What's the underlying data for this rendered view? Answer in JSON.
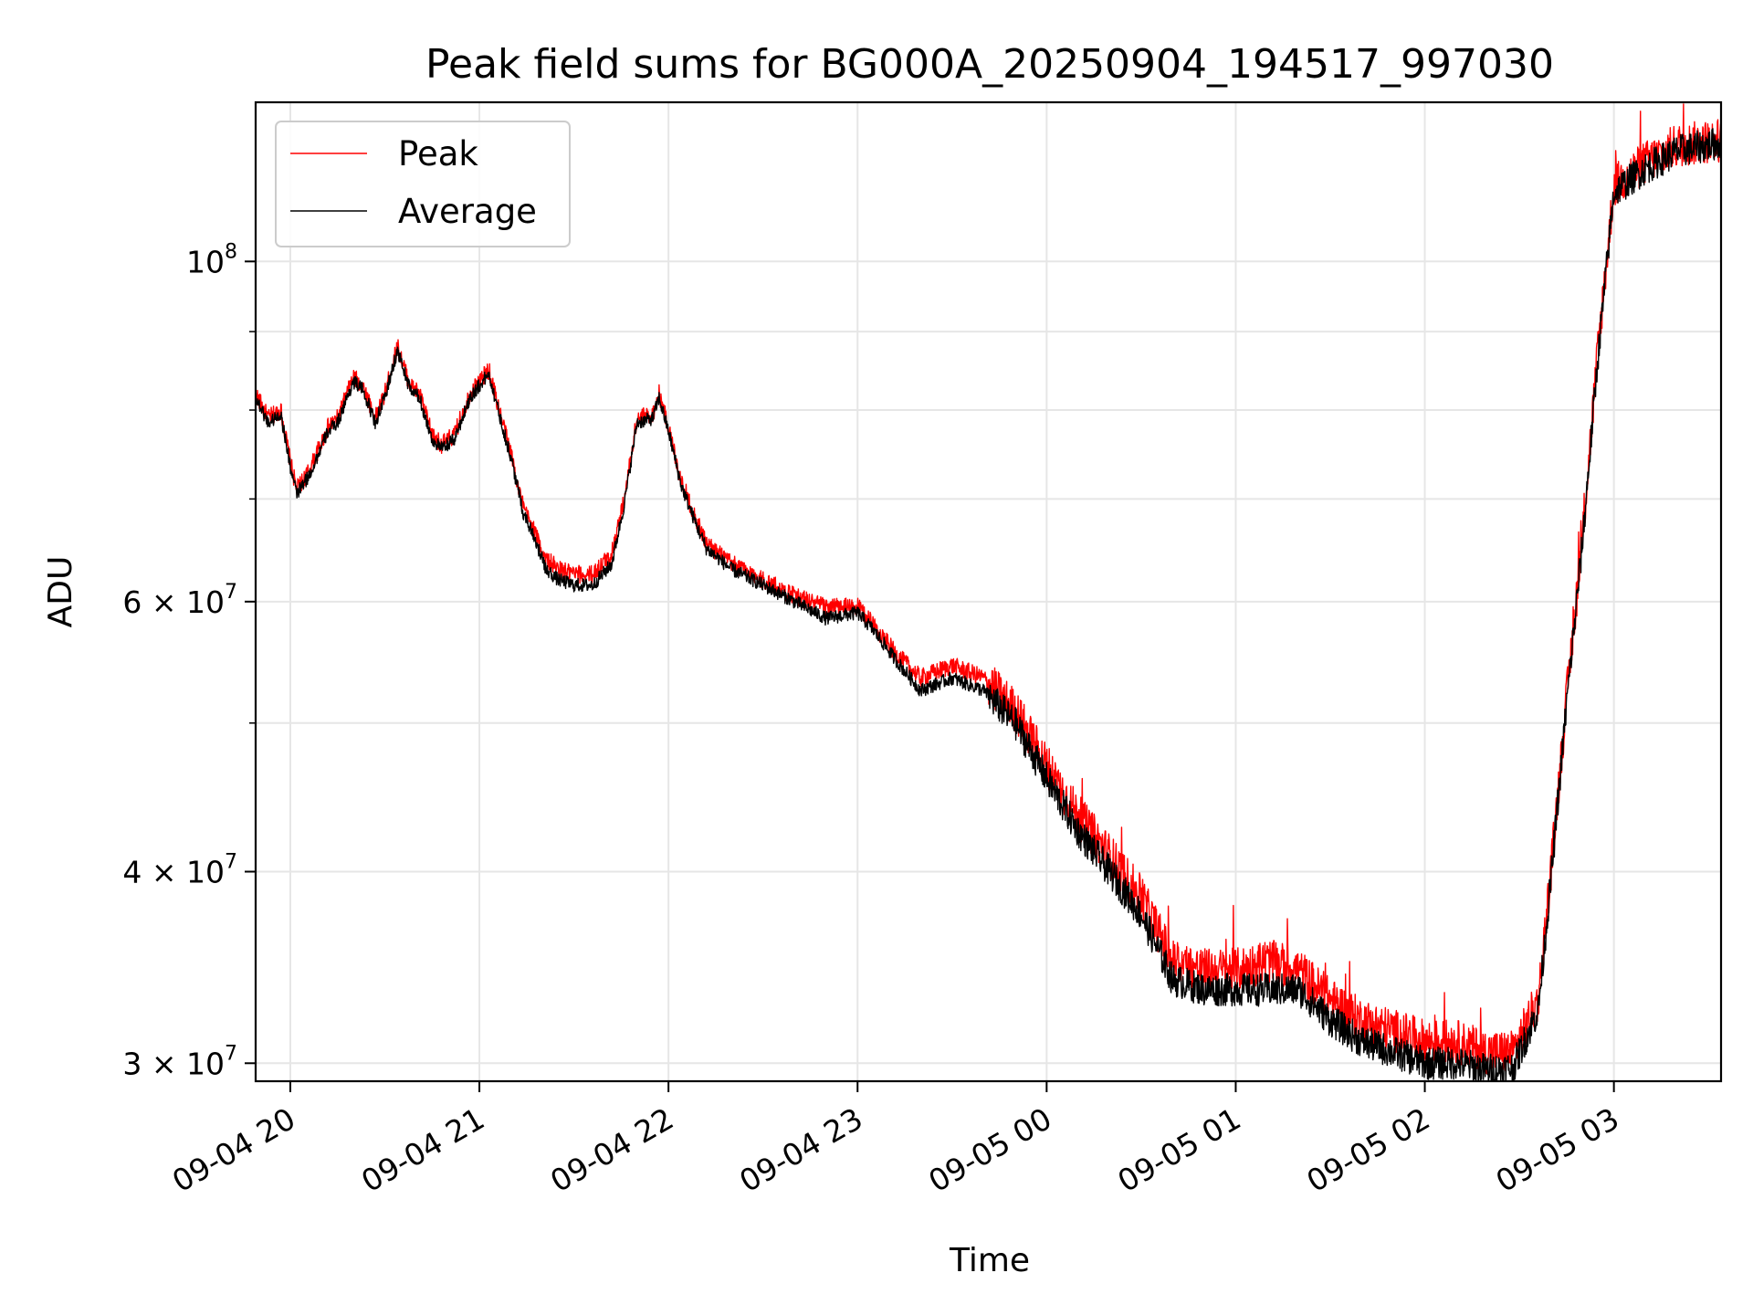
{
  "chart_data": {
    "type": "line",
    "title": "Peak field sums for BG000A_20250904_194517_997030",
    "xlabel": "Time",
    "ylabel": "ADU",
    "y_scale": "log",
    "ylim": [
      29200000,
      127000000
    ],
    "xlim": [
      "2025-09-04 19:49",
      "2025-09-05 03:34"
    ],
    "grid": true,
    "legend_position": "upper-left",
    "x_ticks": [
      {
        "label": "09-04 20",
        "time": "2025-09-04 20:00"
      },
      {
        "label": "09-04 21",
        "time": "2025-09-04 21:00"
      },
      {
        "label": "09-04 22",
        "time": "2025-09-04 22:00"
      },
      {
        "label": "09-04 23",
        "time": "2025-09-04 23:00"
      },
      {
        "label": "09-05 00",
        "time": "2025-09-05 00:00"
      },
      {
        "label": "09-05 01",
        "time": "2025-09-05 01:00"
      },
      {
        "label": "09-05 02",
        "time": "2025-09-05 02:00"
      },
      {
        "label": "09-05 03",
        "time": "2025-09-05 03:00"
      }
    ],
    "y_major_ticks": [
      {
        "value": 30000000,
        "mantissa": "3",
        "base": "10",
        "exp": "7"
      },
      {
        "value": 40000000,
        "mantissa": "4",
        "base": "10",
        "exp": "7"
      },
      {
        "value": 60000000,
        "mantissa": "6",
        "base": "10",
        "exp": "7"
      },
      {
        "value": 100000000,
        "mantissa": "",
        "base": "10",
        "exp": "8"
      }
    ],
    "y_minor_gridlines": [
      50000000,
      70000000,
      80000000,
      90000000
    ],
    "series": [
      {
        "name": "Peak",
        "color": "#ff0000",
        "points": [
          [
            "2025-09-04 19:49",
            82000000
          ],
          [
            "2025-09-04 19:53",
            79000000
          ],
          [
            "2025-09-04 19:57",
            80000000
          ],
          [
            "2025-09-04 20:00",
            74000000
          ],
          [
            "2025-09-04 20:02",
            71000000
          ],
          [
            "2025-09-04 20:06",
            73000000
          ],
          [
            "2025-09-04 20:12",
            78000000
          ],
          [
            "2025-09-04 20:15",
            79000000
          ],
          [
            "2025-09-04 20:20",
            84000000
          ],
          [
            "2025-09-04 20:23",
            83000000
          ],
          [
            "2025-09-04 20:27",
            79000000
          ],
          [
            "2025-09-04 20:30",
            82000000
          ],
          [
            "2025-09-04 20:34",
            88000000
          ],
          [
            "2025-09-04 20:38",
            83000000
          ],
          [
            "2025-09-04 20:41",
            82000000
          ],
          [
            "2025-09-04 20:45",
            77000000
          ],
          [
            "2025-09-04 20:48",
            76000000
          ],
          [
            "2025-09-04 20:52",
            77000000
          ],
          [
            "2025-09-04 20:57",
            82000000
          ],
          [
            "2025-09-04 21:03",
            85000000
          ],
          [
            "2025-09-04 21:07",
            79000000
          ],
          [
            "2025-09-04 21:10",
            75000000
          ],
          [
            "2025-09-04 21:14",
            69000000
          ],
          [
            "2025-09-04 21:17",
            67000000
          ],
          [
            "2025-09-04 21:21",
            64000000
          ],
          [
            "2025-09-04 21:25",
            63000000
          ],
          [
            "2025-09-04 21:30",
            62500000
          ],
          [
            "2025-09-04 21:36",
            62500000
          ],
          [
            "2025-09-04 21:42",
            64500000
          ],
          [
            "2025-09-04 21:46",
            70000000
          ],
          [
            "2025-09-04 21:50",
            79000000
          ],
          [
            "2025-09-04 21:55",
            79500000
          ],
          [
            "2025-09-04 21:57",
            82000000
          ],
          [
            "2025-09-04 22:00",
            78000000
          ],
          [
            "2025-09-04 22:04",
            72000000
          ],
          [
            "2025-09-04 22:08",
            68500000
          ],
          [
            "2025-09-04 22:12",
            65500000
          ],
          [
            "2025-09-04 22:20",
            63500000
          ],
          [
            "2025-09-04 22:30",
            62000000
          ],
          [
            "2025-09-04 22:40",
            60500000
          ],
          [
            "2025-09-04 22:50",
            59500000
          ],
          [
            "2025-09-04 23:00",
            59500000
          ],
          [
            "2025-09-04 23:05",
            58000000
          ],
          [
            "2025-09-04 23:12",
            55500000
          ],
          [
            "2025-09-04 23:20",
            53500000
          ],
          [
            "2025-09-04 23:30",
            54500000
          ],
          [
            "2025-09-04 23:40",
            53500000
          ],
          [
            "2025-09-04 23:50",
            51000000
          ],
          [
            "2025-09-05 00:00",
            47000000
          ],
          [
            "2025-09-05 00:10",
            43500000
          ],
          [
            "2025-09-05 00:20",
            41000000
          ],
          [
            "2025-09-05 00:30",
            38500000
          ],
          [
            "2025-09-05 00:40",
            35000000
          ],
          [
            "2025-09-05 00:50",
            34500000
          ],
          [
            "2025-09-05 01:00",
            34500000
          ],
          [
            "2025-09-05 01:10",
            35000000
          ],
          [
            "2025-09-05 01:20",
            34500000
          ],
          [
            "2025-09-05 01:30",
            33000000
          ],
          [
            "2025-09-05 01:40",
            32000000
          ],
          [
            "2025-09-05 01:50",
            31500000
          ],
          [
            "2025-09-05 02:00",
            31000000
          ],
          [
            "2025-09-05 02:10",
            31000000
          ],
          [
            "2025-09-05 02:20",
            30500000
          ],
          [
            "2025-09-05 02:28",
            30500000
          ],
          [
            "2025-09-05 02:36",
            33000000
          ],
          [
            "2025-09-05 02:40",
            40000000
          ],
          [
            "2025-09-05 02:45",
            52000000
          ],
          [
            "2025-09-05 02:50",
            66000000
          ],
          [
            "2025-09-05 02:55",
            88000000
          ],
          [
            "2025-09-05 03:00",
            112000000
          ],
          [
            "2025-09-05 03:10",
            116000000
          ],
          [
            "2025-09-05 03:20",
            119000000
          ],
          [
            "2025-09-05 03:34",
            120000000
          ]
        ]
      },
      {
        "name": "Average",
        "color": "#000000",
        "points": [
          [
            "2025-09-04 19:49",
            81500000
          ],
          [
            "2025-09-04 19:53",
            78500000
          ],
          [
            "2025-09-04 19:57",
            79500000
          ],
          [
            "2025-09-04 20:00",
            73500000
          ],
          [
            "2025-09-04 20:02",
            70500000
          ],
          [
            "2025-09-04 20:06",
            72500000
          ],
          [
            "2025-09-04 20:12",
            77500000
          ],
          [
            "2025-09-04 20:15",
            78500000
          ],
          [
            "2025-09-04 20:20",
            83500000
          ],
          [
            "2025-09-04 20:23",
            82500000
          ],
          [
            "2025-09-04 20:27",
            78500000
          ],
          [
            "2025-09-04 20:30",
            81500000
          ],
          [
            "2025-09-04 20:34",
            87500000
          ],
          [
            "2025-09-04 20:38",
            82500000
          ],
          [
            "2025-09-04 20:41",
            81500000
          ],
          [
            "2025-09-04 20:45",
            76500000
          ],
          [
            "2025-09-04 20:48",
            75500000
          ],
          [
            "2025-09-04 20:52",
            76500000
          ],
          [
            "2025-09-04 20:57",
            81500000
          ],
          [
            "2025-09-04 21:03",
            84500000
          ],
          [
            "2025-09-04 21:07",
            78500000
          ],
          [
            "2025-09-04 21:10",
            74500000
          ],
          [
            "2025-09-04 21:14",
            68500000
          ],
          [
            "2025-09-04 21:17",
            66500000
          ],
          [
            "2025-09-04 21:21",
            63000000
          ],
          [
            "2025-09-04 21:25",
            62000000
          ],
          [
            "2025-09-04 21:30",
            61500000
          ],
          [
            "2025-09-04 21:36",
            61500000
          ],
          [
            "2025-09-04 21:42",
            63500000
          ],
          [
            "2025-09-04 21:46",
            69500000
          ],
          [
            "2025-09-04 21:50",
            78500000
          ],
          [
            "2025-09-04 21:55",
            79000000
          ],
          [
            "2025-09-04 21:57",
            81500000
          ],
          [
            "2025-09-04 22:00",
            77500000
          ],
          [
            "2025-09-04 22:04",
            71500000
          ],
          [
            "2025-09-04 22:08",
            68000000
          ],
          [
            "2025-09-04 22:12",
            65000000
          ],
          [
            "2025-09-04 22:20",
            63000000
          ],
          [
            "2025-09-04 22:30",
            61500000
          ],
          [
            "2025-09-04 22:40",
            60000000
          ],
          [
            "2025-09-04 22:50",
            58500000
          ],
          [
            "2025-09-04 23:00",
            59000000
          ],
          [
            "2025-09-04 23:05",
            57500000
          ],
          [
            "2025-09-04 23:12",
            55000000
          ],
          [
            "2025-09-04 23:20",
            52500000
          ],
          [
            "2025-09-04 23:30",
            53500000
          ],
          [
            "2025-09-04 23:40",
            52500000
          ],
          [
            "2025-09-04 23:50",
            50000000
          ],
          [
            "2025-09-05 00:00",
            46000000
          ],
          [
            "2025-09-05 00:10",
            42500000
          ],
          [
            "2025-09-05 00:20",
            40000000
          ],
          [
            "2025-09-05 00:30",
            37500000
          ],
          [
            "2025-09-05 00:40",
            34000000
          ],
          [
            "2025-09-05 00:50",
            33500000
          ],
          [
            "2025-09-05 01:00",
            33500000
          ],
          [
            "2025-09-05 01:10",
            33500000
          ],
          [
            "2025-09-05 01:20",
            33500000
          ],
          [
            "2025-09-05 01:30",
            32000000
          ],
          [
            "2025-09-05 01:40",
            31000000
          ],
          [
            "2025-09-05 01:50",
            30500000
          ],
          [
            "2025-09-05 02:00",
            30000000
          ],
          [
            "2025-09-05 02:10",
            30000000
          ],
          [
            "2025-09-05 02:20",
            29700000
          ],
          [
            "2025-09-05 02:28",
            29800000
          ],
          [
            "2025-09-05 02:36",
            32500000
          ],
          [
            "2025-09-05 02:40",
            39500000
          ],
          [
            "2025-09-05 02:45",
            51500000
          ],
          [
            "2025-09-05 02:50",
            65500000
          ],
          [
            "2025-09-05 02:55",
            87000000
          ],
          [
            "2025-09-05 03:00",
            111000000
          ],
          [
            "2025-09-05 03:10",
            115000000
          ],
          [
            "2025-09-05 03:20",
            118000000
          ],
          [
            "2025-09-05 03:34",
            119500000
          ]
        ]
      }
    ]
  }
}
